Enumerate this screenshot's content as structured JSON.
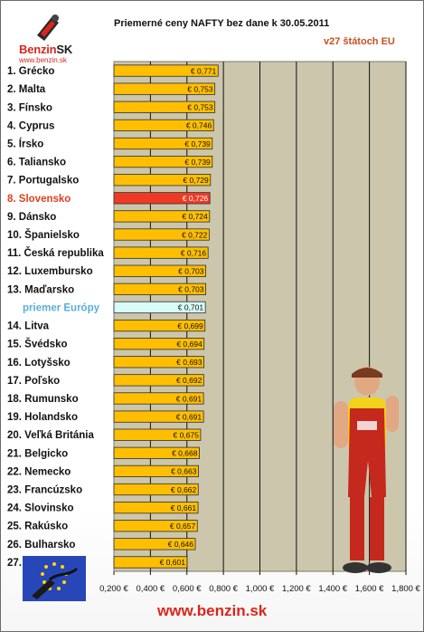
{
  "header": {
    "title": "Priemerné ceny NAFTY bez dane k 30.05.2011",
    "subtitle": "v27 štátoch EU"
  },
  "logo": {
    "name_red": "Benzin",
    "name_dark": "SK",
    "url": "www.benzin.sk"
  },
  "footer": {
    "url": "www.benzin.sk"
  },
  "colors": {
    "bar": "#ffbf00",
    "highlight_bar": "#ee3a24",
    "average_bar": "#d7fbf7",
    "plot_background": "#ccc6ad",
    "highlight_label": "#e0401e",
    "average_label": "#5aaed8"
  },
  "chart_data": {
    "type": "bar",
    "orientation": "horizontal",
    "title": "Priemerné ceny NAFTY bez dane k 30.05.2011",
    "subtitle": "v27 štátoch EU",
    "xlim": [
      0.2,
      1.8
    ],
    "x_ticks": [
      "0,200 €",
      "0,400 €",
      "0,600 €",
      "0,800 €",
      "1,000 €",
      "1,200 €",
      "1,400 €",
      "1,600 €",
      "1,800 €"
    ],
    "grid": true,
    "highlight": "8. Slovensko",
    "average_label": "priemer Európy",
    "categories": [
      "1. Grécko",
      "2. Malta",
      "3. Fínsko",
      "4. Cyprus",
      "5. Írsko",
      "6. Taliansko",
      "7. Portugalsko",
      "8. Slovensko",
      "9. Dánsko",
      "10. Španielsko",
      "11. Česká republika",
      "12. Luxembursko",
      "13. Maďarsko",
      "priemer Európy",
      "14. Litva",
      "15. Švédsko",
      "16. Lotyšsko",
      "17. Poľsko",
      "18. Rumunsko",
      "19. Holandsko",
      "20. Veľká Británia",
      "21. Belgicko",
      "22. Nemecko",
      "23. Francúzsko",
      "24. Slovinsko",
      "25. Rakúsko",
      "26. Bulharsko",
      "27. Estónsko"
    ],
    "values": [
      0.771,
      0.753,
      0.753,
      0.746,
      0.739,
      0.739,
      0.729,
      0.726,
      0.724,
      0.722,
      0.716,
      0.703,
      0.703,
      0.701,
      0.699,
      0.694,
      0.693,
      0.692,
      0.691,
      0.691,
      0.675,
      0.668,
      0.663,
      0.662,
      0.661,
      0.657,
      0.646,
      0.601
    ],
    "data_labels": [
      "€ 0,771",
      "€ 0,753",
      "€ 0,753",
      "€ 0,746",
      "€ 0,739",
      "€ 0,739",
      "€ 0,729",
      "€ 0,726",
      "€ 0,724",
      "€ 0,722",
      "€ 0,716",
      "€ 0,703",
      "€ 0,703",
      "€ 0,701",
      "€ 0,699",
      "€ 0,694",
      "€ 0,693",
      "€ 0,692",
      "€ 0,691",
      "€ 0,691",
      "€ 0,675",
      "€ 0,668",
      "€ 0,663",
      "€ 0,662",
      "€ 0,661",
      "€ 0,657",
      "€ 0,646",
      "€ 0,601"
    ]
  }
}
